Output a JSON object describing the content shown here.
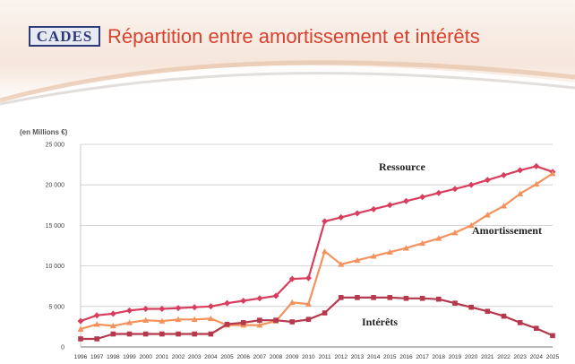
{
  "header": {
    "logo_text": "CADES",
    "title": "Répartition entre amortissement et intérêts"
  },
  "chart_data": {
    "type": "line",
    "title": "Répartition entre amortissement et intérêts",
    "ylabel": "(en Millions €)",
    "xlabel": "",
    "ylim": [
      0,
      25000
    ],
    "yticks": [
      "0",
      "5 000",
      "10 000",
      "15 000",
      "20 000",
      "25 000"
    ],
    "grid": true,
    "categories": [
      "1996",
      "1997",
      "1998",
      "1999",
      "2000",
      "2001",
      "2002",
      "2003",
      "2004",
      "2005",
      "2006",
      "2007",
      "2008",
      "2009",
      "2010",
      "2011",
      "2012",
      "2013",
      "2014",
      "2015",
      "2016",
      "2017",
      "2018",
      "2019",
      "2020",
      "2021",
      "2022",
      "2023",
      "2024",
      "2025"
    ],
    "series": [
      {
        "name": "Ressource",
        "color": "#d93d5e",
        "marker": "diamond",
        "values": [
          3200,
          3900,
          4100,
          4500,
          4700,
          4700,
          4800,
          4900,
          5000,
          5400,
          5700,
          6000,
          6300,
          8400,
          8500,
          15500,
          16000,
          16500,
          17000,
          17500,
          18000,
          18500,
          19000,
          19500,
          20000,
          20600,
          21200,
          21800,
          22300,
          21600
        ]
      },
      {
        "name": "Amortissement",
        "color": "#f3925c",
        "marker": "triangle",
        "values": [
          2200,
          2800,
          2600,
          3000,
          3300,
          3200,
          3400,
          3400,
          3500,
          2700,
          2700,
          2700,
          3200,
          5500,
          5300,
          11800,
          10200,
          10700,
          11200,
          11700,
          12200,
          12800,
          13400,
          14100,
          15000,
          16300,
          17400,
          18900,
          20100,
          21400
        ]
      },
      {
        "name": "Intérêts",
        "color": "#b5384c",
        "marker": "square",
        "values": [
          1000,
          1000,
          1600,
          1600,
          1600,
          1600,
          1600,
          1600,
          1600,
          2800,
          3000,
          3300,
          3300,
          3100,
          3400,
          4200,
          6100,
          6100,
          6100,
          6100,
          6000,
          6000,
          5900,
          5400,
          4900,
          4400,
          3800,
          3000,
          2300,
          1400
        ]
      }
    ]
  }
}
